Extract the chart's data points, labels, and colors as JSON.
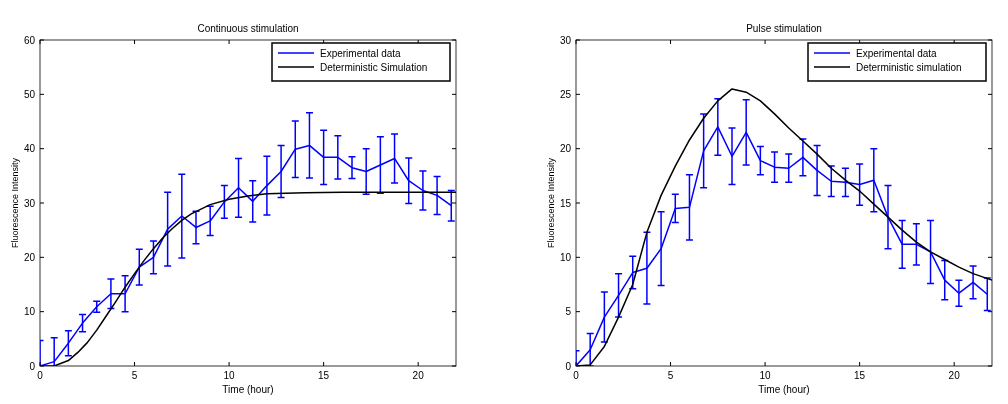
{
  "chart_data": [
    {
      "type": "line",
      "title": "Continuous stimulation",
      "xlabel": "Time (hour)",
      "ylabel": "Fluorescence Intensity",
      "xlim": [
        0,
        22
      ],
      "xticks": [
        0,
        5,
        10,
        15,
        20
      ],
      "ylim": [
        0,
        60
      ],
      "yticks": [
        0,
        10,
        20,
        30,
        40,
        50,
        60
      ],
      "legend": "top right",
      "series": [
        {
          "name": "Experimental data",
          "color": "#0000ff",
          "x": [
            0,
            0.75,
            1.5,
            2.25,
            3,
            3.75,
            4.5,
            5.25,
            6,
            6.75,
            7.5,
            8.25,
            9,
            9.75,
            10.5,
            11.25,
            12,
            12.75,
            13.5,
            14.25,
            15,
            15.75,
            16.5,
            17.25,
            18,
            18.75,
            19.5,
            20.25,
            21,
            21.75
          ],
          "values": [
            0,
            0.8,
            4.2,
            7.9,
            10.9,
            13.3,
            13.3,
            18.2,
            20,
            25.2,
            27.6,
            25.5,
            26.7,
            30.2,
            32.8,
            30.3,
            33.2,
            35.8,
            39.9,
            40.6,
            38.4,
            38.4,
            36.5,
            35.8,
            37,
            38.2,
            34.1,
            32.3,
            31.4,
            29.5
          ],
          "errors": [
            4.7,
            4.4,
            2.3,
            1.6,
            1,
            2.7,
            3.3,
            3.3,
            3,
            6.8,
            7.7,
            3,
            2.7,
            3,
            5.4,
            3.8,
            5.4,
            4.8,
            5.2,
            6,
            5,
            4,
            2,
            4.2,
            5.2,
            4.5,
            4.2,
            3.6,
            3.5,
            2.8
          ]
        },
        {
          "name": "Deterministic Simulation",
          "color": "#000000",
          "x": [
            0,
            0.75,
            1.5,
            2,
            2.5,
            3,
            3.5,
            4,
            4.5,
            5,
            5.5,
            6,
            6.5,
            7,
            7.5,
            8,
            9,
            10,
            11,
            12,
            14,
            16,
            22
          ],
          "values": [
            0,
            0,
            1,
            2.5,
            4.3,
            6.6,
            9.2,
            11.8,
            14.5,
            17,
            19.4,
            21.6,
            23.6,
            25.3,
            26.8,
            28,
            29.7,
            30.7,
            31.3,
            31.7,
            31.9,
            32,
            32
          ]
        }
      ]
    },
    {
      "type": "line",
      "title": "Pulse stimulation",
      "xlabel": "Time (hour)",
      "ylabel": "Fluorescence Intensity",
      "xlim": [
        0,
        22
      ],
      "xticks": [
        0,
        5,
        10,
        15,
        20
      ],
      "ylim": [
        0,
        30
      ],
      "yticks": [
        0,
        5,
        10,
        15,
        20,
        25,
        30
      ],
      "legend": "top right",
      "series": [
        {
          "name": "Experimental data",
          "color": "#0000ff",
          "x": [
            0,
            0.75,
            1.5,
            2.25,
            3,
            3.75,
            4.5,
            5.25,
            6,
            6.75,
            7.5,
            8.25,
            9,
            9.75,
            10.5,
            11.25,
            12,
            12.75,
            13.5,
            14.25,
            15,
            15.75,
            16.5,
            17.25,
            18,
            18.75,
            19.5,
            20.25,
            21,
            21.75
          ],
          "values": [
            0,
            1.5,
            4.5,
            6.5,
            8.6,
            9,
            10.8,
            14.5,
            14.6,
            19.8,
            22,
            19.3,
            21.5,
            18.9,
            18.3,
            18.2,
            19.2,
            18,
            17,
            16.9,
            16.7,
            17.1,
            13.7,
            11.2,
            11.2,
            10.5,
            7.9,
            6.7,
            7.7,
            6.6
          ],
          "errors": [
            1.4,
            1.5,
            2.3,
            2,
            1.5,
            3.3,
            3.4,
            1.3,
            3,
            3.4,
            2.6,
            2.6,
            3,
            1.3,
            1.4,
            1.3,
            1.7,
            2.3,
            1.4,
            1.3,
            1.9,
            2.9,
            2.9,
            2.2,
            1.9,
            2.9,
            1.8,
            1.2,
            1.5,
            1.5
          ]
        },
        {
          "name": "Deterministic simulation",
          "color": "#000000",
          "x": [
            0,
            0.75,
            1.5,
            2.25,
            3,
            3.75,
            4.5,
            5.25,
            6,
            6.75,
            7.5,
            8.25,
            9,
            9.75,
            10.5,
            11.25,
            12,
            12.75,
            13.5,
            14.25,
            15,
            15.75,
            16.5,
            17.25,
            18,
            18.75,
            19.5,
            20.25,
            21,
            22
          ],
          "values": [
            0,
            0.1,
            1.8,
            4.5,
            7.5,
            12.3,
            15.7,
            18.4,
            20.8,
            22.8,
            24.4,
            25.5,
            25.2,
            24.4,
            23.2,
            21.9,
            20.7,
            19.5,
            18.2,
            17.1,
            16.1,
            14.9,
            13.7,
            12.5,
            11.4,
            10.5,
            9.8,
            9.1,
            8.5,
            7.9
          ]
        }
      ]
    }
  ]
}
